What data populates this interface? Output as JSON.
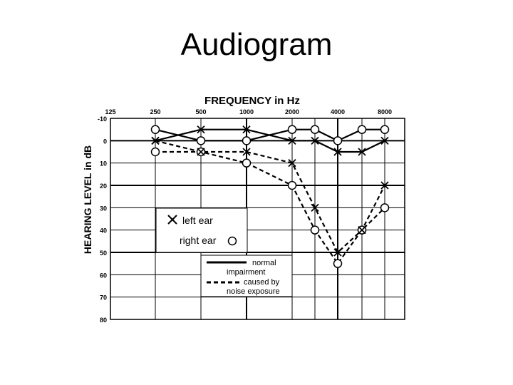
{
  "page": {
    "title": "Audiogram"
  },
  "chart_data": {
    "type": "line",
    "title": "FREQUENCY in Hz",
    "xlabel": "FREQUENCY in Hz",
    "ylabel": "HEARING LEVEL in dB",
    "x_ticks": [
      "125",
      "250",
      "500",
      "1000",
      "2000",
      "4000",
      "8000"
    ],
    "y_ticks": [
      "-10",
      "0",
      "10",
      "20",
      "30",
      "40",
      "50",
      "60",
      "70",
      "80"
    ],
    "ylim": [
      -10,
      80
    ],
    "y_inverted": true,
    "grid": true,
    "legend": {
      "left_ear": "left ear",
      "right_ear": "right ear",
      "normal": "normal",
      "impairment_line1": "impairment",
      "impairment_line2": "caused by",
      "impairment_line3": "noise exposure"
    },
    "series": [
      {
        "ear": "right",
        "style": "solid",
        "x": [
          250,
          500,
          1000,
          2000,
          3000,
          4000,
          6000,
          8000
        ],
        "values": [
          -5,
          0,
          0,
          -5,
          -5,
          0,
          -5,
          -5
        ]
      },
      {
        "ear": "left",
        "style": "solid",
        "x": [
          250,
          500,
          1000,
          2000,
          3000,
          4000,
          6000,
          8000
        ],
        "values": [
          0,
          -5,
          -5,
          0,
          0,
          5,
          5,
          0
        ]
      },
      {
        "ear": "right",
        "style": "dashed",
        "x": [
          250,
          500,
          1000,
          2000,
          3000,
          4000,
          6000,
          8000
        ],
        "values": [
          5,
          5,
          10,
          20,
          40,
          55,
          40,
          30
        ]
      },
      {
        "ear": "left",
        "style": "dashed",
        "x": [
          250,
          500,
          1000,
          2000,
          3000,
          4000,
          6000,
          8000
        ],
        "values": [
          0,
          5,
          5,
          10,
          30,
          50,
          40,
          20
        ]
      }
    ]
  }
}
